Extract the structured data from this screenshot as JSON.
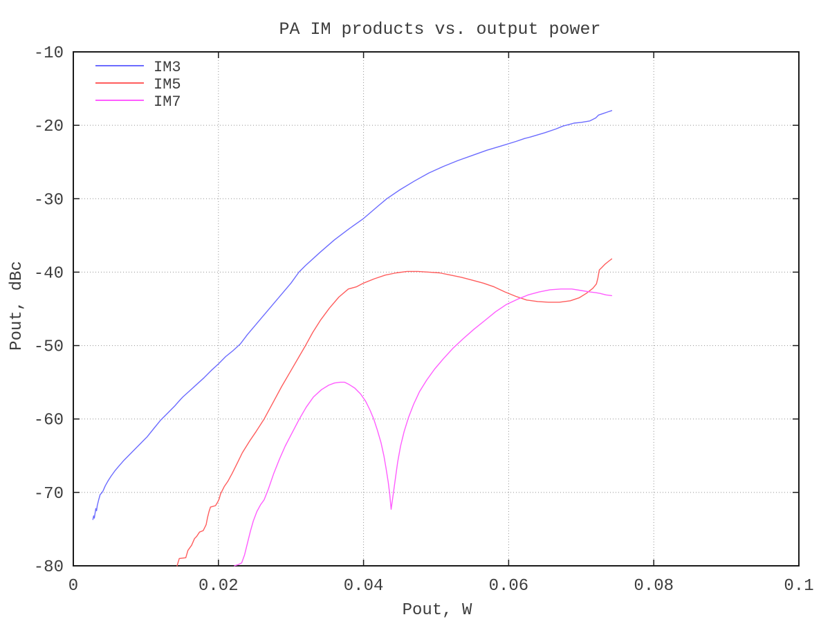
{
  "chart_data": {
    "type": "line",
    "title": "PA IM products vs. output power",
    "xlabel": "Pout, W",
    "ylabel": "Pout, dBc",
    "xlim": [
      0,
      0.1
    ],
    "ylim": [
      -80,
      -10
    ],
    "grid": true,
    "legend_position": "top-left",
    "x_ticks": [
      {
        "v": 0,
        "label": "0"
      },
      {
        "v": 0.02,
        "label": "0.02"
      },
      {
        "v": 0.04,
        "label": "0.04"
      },
      {
        "v": 0.06,
        "label": "0.06"
      },
      {
        "v": 0.08,
        "label": "0.08"
      },
      {
        "v": 0.1,
        "label": "0.1"
      }
    ],
    "y_ticks": [
      {
        "v": -10,
        "label": "-10"
      },
      {
        "v": -20,
        "label": "-20"
      },
      {
        "v": -30,
        "label": "-30"
      },
      {
        "v": -40,
        "label": "-40"
      },
      {
        "v": -50,
        "label": "-50"
      },
      {
        "v": -60,
        "label": "-60"
      },
      {
        "v": -70,
        "label": "-70"
      },
      {
        "v": -80,
        "label": "-80"
      }
    ],
    "series": [
      {
        "name": "IM3",
        "color": "#6b6bff",
        "points": [
          [
            0.0027,
            -73.7
          ],
          [
            0.0028,
            -73.2
          ],
          [
            0.0029,
            -73.5
          ],
          [
            0.003,
            -72.8
          ],
          [
            0.0031,
            -72.2
          ],
          [
            0.0032,
            -72.5
          ],
          [
            0.0033,
            -71.8
          ],
          [
            0.0035,
            -71.0
          ],
          [
            0.0037,
            -70.3
          ],
          [
            0.0039,
            -70.1
          ],
          [
            0.0041,
            -69.8
          ],
          [
            0.0044,
            -69.1
          ],
          [
            0.0048,
            -68.4
          ],
          [
            0.0052,
            -67.8
          ],
          [
            0.0057,
            -67.1
          ],
          [
            0.0063,
            -66.4
          ],
          [
            0.007,
            -65.6
          ],
          [
            0.0077,
            -64.9
          ],
          [
            0.0085,
            -64.1
          ],
          [
            0.0093,
            -63.3
          ],
          [
            0.0102,
            -62.4
          ],
          [
            0.0111,
            -61.3
          ],
          [
            0.012,
            -60.2
          ],
          [
            0.013,
            -59.2
          ],
          [
            0.014,
            -58.2
          ],
          [
            0.0148,
            -57.3
          ],
          [
            0.0151,
            -57.0
          ],
          [
            0.016,
            -56.2
          ],
          [
            0.017,
            -55.3
          ],
          [
            0.018,
            -54.4
          ],
          [
            0.019,
            -53.4
          ],
          [
            0.02,
            -52.5
          ],
          [
            0.021,
            -51.5
          ],
          [
            0.022,
            -50.7
          ],
          [
            0.023,
            -49.8
          ],
          [
            0.024,
            -48.5
          ],
          [
            0.0252,
            -47.1
          ],
          [
            0.0264,
            -45.7
          ],
          [
            0.0276,
            -44.3
          ],
          [
            0.0288,
            -42.9
          ],
          [
            0.03,
            -41.5
          ],
          [
            0.0311,
            -40.0
          ],
          [
            0.032,
            -39.1
          ],
          [
            0.034,
            -37.3
          ],
          [
            0.036,
            -35.6
          ],
          [
            0.038,
            -34.1
          ],
          [
            0.04,
            -32.7
          ],
          [
            0.042,
            -31.0
          ],
          [
            0.0432,
            -30.0
          ],
          [
            0.045,
            -28.8
          ],
          [
            0.047,
            -27.6
          ],
          [
            0.049,
            -26.5
          ],
          [
            0.051,
            -25.6
          ],
          [
            0.053,
            -24.8
          ],
          [
            0.055,
            -24.1
          ],
          [
            0.057,
            -23.4
          ],
          [
            0.059,
            -22.8
          ],
          [
            0.061,
            -22.2
          ],
          [
            0.0622,
            -21.8
          ],
          [
            0.063,
            -21.6
          ],
          [
            0.065,
            -21.0
          ],
          [
            0.0665,
            -20.5
          ],
          [
            0.0675,
            -20.1
          ],
          [
            0.0683,
            -19.9
          ],
          [
            0.069,
            -19.7
          ],
          [
            0.07,
            -19.6
          ],
          [
            0.0712,
            -19.4
          ],
          [
            0.072,
            -19.0
          ],
          [
            0.0724,
            -18.6
          ],
          [
            0.073,
            -18.4
          ],
          [
            0.0736,
            -18.2
          ],
          [
            0.0742,
            -18.0
          ]
        ]
      },
      {
        "name": "IM5",
        "color": "#ff5c5c",
        "points": [
          [
            0.0143,
            -80.0
          ],
          [
            0.0146,
            -79.0
          ],
          [
            0.0155,
            -78.9
          ],
          [
            0.0158,
            -77.9
          ],
          [
            0.0163,
            -77.2
          ],
          [
            0.0167,
            -76.3
          ],
          [
            0.017,
            -76.0
          ],
          [
            0.0174,
            -75.4
          ],
          [
            0.0179,
            -75.2
          ],
          [
            0.0183,
            -74.4
          ],
          [
            0.0185,
            -73.4
          ],
          [
            0.0187,
            -72.6
          ],
          [
            0.0189,
            -72.0
          ],
          [
            0.0196,
            -71.8
          ],
          [
            0.0199,
            -71.3
          ],
          [
            0.0201,
            -70.9
          ],
          [
            0.0203,
            -70.2
          ],
          [
            0.0208,
            -69.2
          ],
          [
            0.0213,
            -68.5
          ],
          [
            0.0219,
            -67.4
          ],
          [
            0.0226,
            -66.0
          ],
          [
            0.0233,
            -64.6
          ],
          [
            0.0243,
            -63.0
          ],
          [
            0.0252,
            -61.7
          ],
          [
            0.0263,
            -60.0
          ],
          [
            0.0275,
            -57.8
          ],
          [
            0.0287,
            -55.6
          ],
          [
            0.03,
            -53.4
          ],
          [
            0.031,
            -51.7
          ],
          [
            0.032,
            -50.0
          ],
          [
            0.033,
            -48.2
          ],
          [
            0.0341,
            -46.5
          ],
          [
            0.0353,
            -44.9
          ],
          [
            0.0366,
            -43.4
          ],
          [
            0.0379,
            -42.3
          ],
          [
            0.039,
            -42.0
          ],
          [
            0.04,
            -41.5
          ],
          [
            0.0415,
            -40.9
          ],
          [
            0.043,
            -40.4
          ],
          [
            0.0445,
            -40.1
          ],
          [
            0.046,
            -39.9
          ],
          [
            0.0475,
            -39.9
          ],
          [
            0.049,
            -40.0
          ],
          [
            0.0505,
            -40.1
          ],
          [
            0.052,
            -40.4
          ],
          [
            0.0535,
            -40.7
          ],
          [
            0.055,
            -41.1
          ],
          [
            0.0565,
            -41.5
          ],
          [
            0.058,
            -42.0
          ],
          [
            0.0595,
            -42.7
          ],
          [
            0.061,
            -43.3
          ],
          [
            0.0625,
            -43.8
          ],
          [
            0.064,
            -44.0
          ],
          [
            0.0655,
            -44.1
          ],
          [
            0.067,
            -44.1
          ],
          [
            0.0685,
            -43.9
          ],
          [
            0.0697,
            -43.5
          ],
          [
            0.0707,
            -42.9
          ],
          [
            0.0716,
            -42.2
          ],
          [
            0.0721,
            -41.6
          ],
          [
            0.0723,
            -40.8
          ],
          [
            0.0725,
            -39.7
          ],
          [
            0.0728,
            -39.4
          ],
          [
            0.0733,
            -38.9
          ],
          [
            0.0738,
            -38.5
          ],
          [
            0.0742,
            -38.2
          ]
        ]
      },
      {
        "name": "IM7",
        "color": "#ff5cff",
        "points": [
          [
            0.0222,
            -80.0
          ],
          [
            0.0228,
            -79.8
          ],
          [
            0.0232,
            -79.6
          ],
          [
            0.0236,
            -78.5
          ],
          [
            0.024,
            -76.9
          ],
          [
            0.0244,
            -75.3
          ],
          [
            0.0248,
            -73.9
          ],
          [
            0.0253,
            -72.6
          ],
          [
            0.0258,
            -71.7
          ],
          [
            0.0263,
            -71.0
          ],
          [
            0.0269,
            -69.5
          ],
          [
            0.0276,
            -67.5
          ],
          [
            0.0284,
            -65.5
          ],
          [
            0.0292,
            -63.7
          ],
          [
            0.0301,
            -62.0
          ],
          [
            0.0311,
            -60.1
          ],
          [
            0.0321,
            -58.4
          ],
          [
            0.0331,
            -57.0
          ],
          [
            0.0342,
            -56.0
          ],
          [
            0.0352,
            -55.4
          ],
          [
            0.036,
            -55.1
          ],
          [
            0.0368,
            -55.0
          ],
          [
            0.0374,
            -55.0
          ],
          [
            0.038,
            -55.3
          ],
          [
            0.0388,
            -55.8
          ],
          [
            0.0396,
            -56.6
          ],
          [
            0.0403,
            -57.6
          ],
          [
            0.0409,
            -58.8
          ],
          [
            0.0414,
            -60.0
          ],
          [
            0.0419,
            -61.5
          ],
          [
            0.0424,
            -63.2
          ],
          [
            0.0428,
            -65.0
          ],
          [
            0.0431,
            -66.7
          ],
          [
            0.0434,
            -68.6
          ],
          [
            0.0436,
            -70.2
          ],
          [
            0.0438,
            -72.3
          ],
          [
            0.0441,
            -70.2
          ],
          [
            0.0444,
            -68.0
          ],
          [
            0.0447,
            -65.9
          ],
          [
            0.0451,
            -63.7
          ],
          [
            0.0456,
            -61.7
          ],
          [
            0.0462,
            -59.8
          ],
          [
            0.0469,
            -58.0
          ],
          [
            0.0477,
            -56.3
          ],
          [
            0.0487,
            -54.7
          ],
          [
            0.0498,
            -53.2
          ],
          [
            0.051,
            -51.8
          ],
          [
            0.0523,
            -50.4
          ],
          [
            0.0537,
            -49.1
          ],
          [
            0.0552,
            -47.8
          ],
          [
            0.0567,
            -46.6
          ],
          [
            0.0582,
            -45.4
          ],
          [
            0.0597,
            -44.4
          ],
          [
            0.0612,
            -43.7
          ],
          [
            0.0627,
            -43.1
          ],
          [
            0.0642,
            -42.7
          ],
          [
            0.0657,
            -42.4
          ],
          [
            0.0672,
            -42.3
          ],
          [
            0.0687,
            -42.3
          ],
          [
            0.07,
            -42.5
          ],
          [
            0.0712,
            -42.7
          ],
          [
            0.072,
            -42.8
          ],
          [
            0.0726,
            -42.9
          ],
          [
            0.0734,
            -43.1
          ],
          [
            0.0742,
            -43.2
          ]
        ]
      }
    ]
  }
}
